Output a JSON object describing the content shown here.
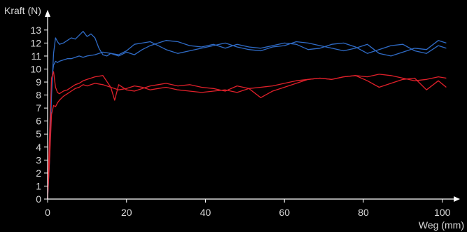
{
  "chart_data": {
    "type": "line",
    "title": "",
    "xlabel": "Weg (mm)",
    "ylabel": "Kraft (N)",
    "xlim": [
      0,
      102
    ],
    "ylim": [
      0,
      13.8
    ],
    "xticks": [
      0,
      20,
      40,
      60,
      80,
      100
    ],
    "yticks": [
      0,
      1,
      2,
      3,
      4,
      5,
      6,
      7,
      8,
      9,
      10,
      11,
      12,
      13
    ],
    "grid": false,
    "legend": "none",
    "background": "#000000",
    "series": [
      {
        "color": "#2f6bc6",
        "x": [
          0,
          0.5,
          1,
          1.5,
          2,
          2.5,
          3,
          4,
          5,
          6,
          7,
          8,
          9,
          10,
          11,
          12,
          13,
          14,
          15,
          16,
          18,
          20,
          22,
          24,
          26,
          28,
          30,
          33,
          36,
          39,
          42,
          45,
          48,
          51,
          54,
          57,
          60,
          63,
          66,
          69,
          72,
          75,
          78,
          81,
          84,
          87,
          90,
          93,
          96,
          99,
          101
        ],
        "y": [
          0,
          3,
          8,
          11.2,
          12.4,
          12.1,
          11.9,
          12,
          12.2,
          12.4,
          12.3,
          12.6,
          12.9,
          12.5,
          12.7,
          12.4,
          11.6,
          11.1,
          11,
          11.2,
          11,
          11.3,
          11.1,
          11.5,
          11.8,
          12,
          12.2,
          12.1,
          11.8,
          11.7,
          11.9,
          11.6,
          11.9,
          11.7,
          11.6,
          11.8,
          12,
          11.9,
          11.5,
          11.6,
          11.9,
          12,
          11.7,
          11.2,
          11.5,
          11.8,
          11.9,
          11.4,
          11.2,
          11.8,
          11.6
        ]
      },
      {
        "color": "#2f6bc6",
        "x": [
          0,
          0.5,
          1,
          1.5,
          2,
          2.5,
          3,
          4,
          5,
          6,
          7,
          8,
          9,
          10,
          12,
          14,
          16,
          18,
          20,
          22,
          24,
          26,
          28,
          30,
          33,
          36,
          39,
          42,
          45,
          48,
          51,
          54,
          57,
          60,
          63,
          66,
          69,
          72,
          75,
          78,
          81,
          84,
          87,
          90,
          93,
          96,
          99,
          101
        ],
        "y": [
          0,
          4,
          9,
          10.3,
          10.6,
          10.5,
          10.6,
          10.7,
          10.8,
          10.8,
          10.9,
          11,
          10.9,
          11,
          11.1,
          11.3,
          11.2,
          11.1,
          11.4,
          11.9,
          12,
          12.1,
          11.8,
          11.5,
          11.2,
          11.4,
          11.6,
          11.8,
          12,
          11.7,
          11.5,
          11.4,
          11.7,
          11.8,
          12.1,
          12,
          11.8,
          11.6,
          11.4,
          11.6,
          11.9,
          11.2,
          11,
          11.3,
          11.6,
          11.5,
          12.2,
          12
        ]
      },
      {
        "color": "#e0202a",
        "x": [
          0,
          0.5,
          1,
          1.5,
          2,
          2.5,
          3,
          4,
          5,
          6,
          7,
          8,
          9,
          10,
          12,
          14,
          16,
          18,
          20,
          22,
          24,
          26,
          28,
          30,
          33,
          36,
          39,
          42,
          45,
          48,
          51,
          54,
          57,
          60,
          63,
          66,
          69,
          72,
          75,
          78,
          81,
          84,
          87,
          90,
          93,
          96,
          99,
          101
        ],
        "y": [
          0,
          3,
          6.5,
          7.2,
          7.1,
          7.4,
          7.6,
          7.9,
          8.1,
          8.3,
          8.5,
          8.6,
          8.8,
          8.7,
          8.9,
          8.8,
          8.6,
          8.4,
          8.5,
          8.7,
          8.6,
          8.4,
          8.5,
          8.6,
          8.4,
          8.3,
          8.2,
          8.3,
          8.4,
          8.2,
          8.5,
          8.6,
          8.7,
          8.9,
          9.1,
          9.2,
          9.3,
          9.2,
          9.4,
          9.5,
          9.4,
          9.6,
          9.5,
          9.3,
          9.1,
          9.2,
          9.4,
          9.3
        ]
      },
      {
        "color": "#e0202a",
        "x": [
          0,
          0.5,
          1,
          1.5,
          2,
          2.5,
          3,
          4,
          5,
          6,
          7,
          8,
          9,
          10,
          12,
          14,
          16,
          17,
          18,
          20,
          22,
          24,
          26,
          28,
          30,
          33,
          36,
          39,
          42,
          45,
          48,
          51,
          54,
          57,
          60,
          63,
          66,
          69,
          72,
          75,
          78,
          81,
          84,
          87,
          90,
          93,
          96,
          99,
          101
        ],
        "y": [
          0,
          5,
          9.3,
          9.8,
          8.6,
          8.2,
          8.1,
          8.3,
          8.4,
          8.6,
          8.8,
          8.9,
          9.1,
          9.2,
          9.4,
          9.5,
          8.6,
          7.6,
          8.8,
          8.4,
          8.3,
          8.5,
          8.7,
          8.8,
          8.9,
          8.7,
          8.8,
          8.6,
          8.5,
          8.3,
          8.7,
          8.5,
          7.8,
          8.3,
          8.6,
          8.9,
          9.2,
          9.3,
          9.2,
          9.4,
          9.5,
          9.1,
          8.6,
          8.9,
          9.2,
          9.3,
          8.4,
          9.1,
          8.6
        ]
      }
    ]
  }
}
